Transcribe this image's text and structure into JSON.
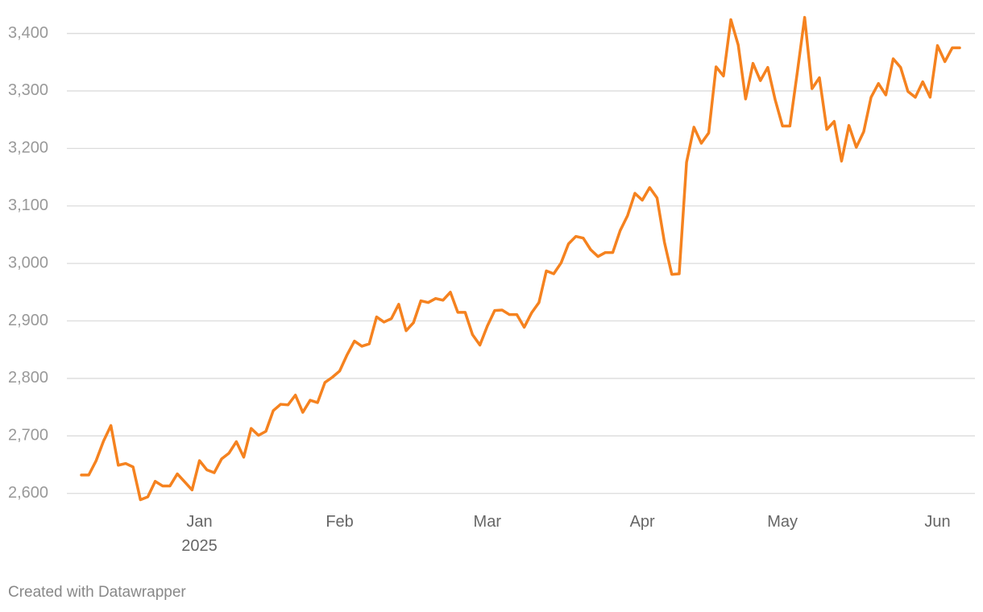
{
  "chart_data": {
    "type": "line",
    "categories": [
      null,
      null,
      null,
      null,
      null,
      null,
      null,
      null,
      null,
      null,
      null,
      null,
      null,
      null,
      null,
      null,
      "Jan\n2025",
      null,
      null,
      null,
      null,
      null,
      null,
      null,
      null,
      null,
      null,
      null,
      null,
      null,
      null,
      null,
      null,
      null,
      null,
      "Feb",
      null,
      null,
      null,
      null,
      null,
      null,
      null,
      null,
      null,
      null,
      null,
      null,
      null,
      null,
      null,
      null,
      null,
      null,
      null,
      "Mar",
      null,
      null,
      null,
      null,
      null,
      null,
      null,
      null,
      null,
      null,
      null,
      null,
      null,
      null,
      null,
      null,
      null,
      null,
      null,
      null,
      "Apr",
      null,
      null,
      null,
      null,
      null,
      null,
      null,
      null,
      null,
      null,
      null,
      null,
      null,
      null,
      null,
      null,
      null,
      null,
      "May",
      null,
      null,
      null,
      null,
      null,
      null,
      null,
      null,
      null,
      null,
      null,
      null,
      null,
      null,
      null,
      null,
      null,
      null,
      null,
      null,
      "Jun",
      null,
      null,
      null
    ],
    "values": [
      2632,
      2632,
      2657,
      2691,
      2718,
      2649,
      2652,
      2646,
      2589,
      2594,
      2621,
      2613,
      2613,
      2634,
      2620,
      2606,
      2657,
      2641,
      2636,
      2660,
      2670,
      2690,
      2663,
      2713,
      2701,
      2708,
      2744,
      2755,
      2754,
      2771,
      2741,
      2762,
      2758,
      2793,
      2802,
      2813,
      2841,
      2865,
      2856,
      2860,
      2907,
      2898,
      2904,
      2929,
      2883,
      2897,
      2935,
      2932,
      2939,
      2936,
      2950,
      2915,
      2915,
      2876,
      2858,
      2891,
      2918,
      2919,
      2911,
      2911,
      2889,
      2914,
      2932,
      2987,
      2982,
      3001,
      3034,
      3047,
      3044,
      3024,
      3012,
      3019,
      3019,
      3057,
      3083,
      3122,
      3110,
      3132,
      3114,
      3037,
      2981,
      2982,
      3176,
      3237,
      3209,
      3227,
      3342,
      3326,
      3424,
      3380,
      3286,
      3348,
      3318,
      3341,
      3285,
      3239,
      3239,
      3332,
      3428,
      3304,
      3323,
      3233,
      3247,
      3178,
      3240,
      3202,
      3229,
      3289,
      3313,
      3293,
      3356,
      3341,
      3299,
      3289,
      3316,
      3289,
      3379,
      3351,
      3375,
      3375
    ],
    "color": "#f5821f",
    "ylim": [
      2580,
      3440
    ],
    "yticks": [
      {
        "value": 2600,
        "label": "2,600"
      },
      {
        "value": 2700,
        "label": "2,700"
      },
      {
        "value": 2800,
        "label": "2,800"
      },
      {
        "value": 2900,
        "label": "2,900"
      },
      {
        "value": 3000,
        "label": "3,000"
      },
      {
        "value": 3100,
        "label": "3,100"
      },
      {
        "value": 3200,
        "label": "3,200"
      },
      {
        "value": 3300,
        "label": "3,300"
      },
      {
        "value": 3400,
        "label": "3,400"
      }
    ],
    "grid": true,
    "credit": "Created with Datawrapper"
  }
}
